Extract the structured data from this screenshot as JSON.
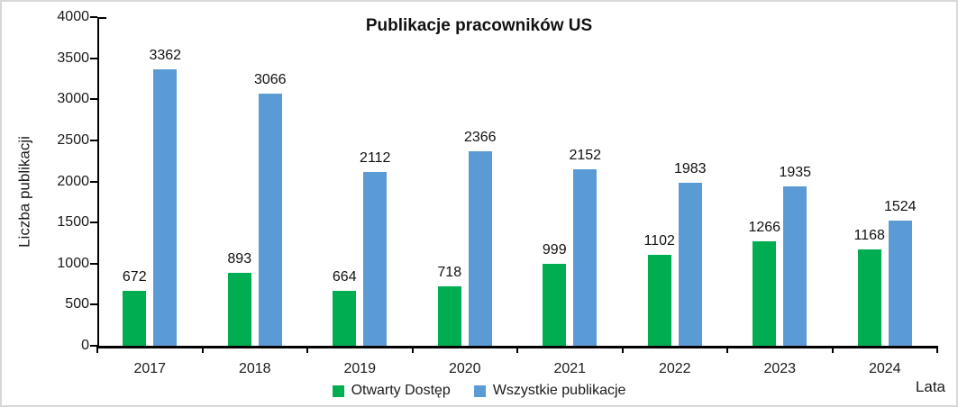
{
  "chart_data": {
    "type": "bar",
    "title": "Publikacje pracowników US",
    "xlabel": "Lata",
    "ylabel": "Liczba publikacji",
    "categories": [
      "2017",
      "2018",
      "2019",
      "2020",
      "2021",
      "2022",
      "2023",
      "2024"
    ],
    "series": [
      {
        "name": "Otwarty Dostęp",
        "color": "#00AD50",
        "values": [
          672,
          893,
          664,
          718,
          999,
          1102,
          1266,
          1168
        ]
      },
      {
        "name": "Wszystkie publikacje",
        "color": "#5B9BD5",
        "values": [
          3362,
          3066,
          2112,
          2366,
          2152,
          1983,
          1935,
          1524
        ]
      }
    ],
    "ylim": [
      0,
      4000
    ],
    "ytick_step": 500,
    "yticks": [
      0,
      500,
      1000,
      1500,
      2000,
      2500,
      3000,
      3500,
      4000
    ],
    "data_labels": true,
    "grid": false,
    "legend_position": "bottom",
    "axis_color": "#000000",
    "background_color": "#ffffff"
  }
}
